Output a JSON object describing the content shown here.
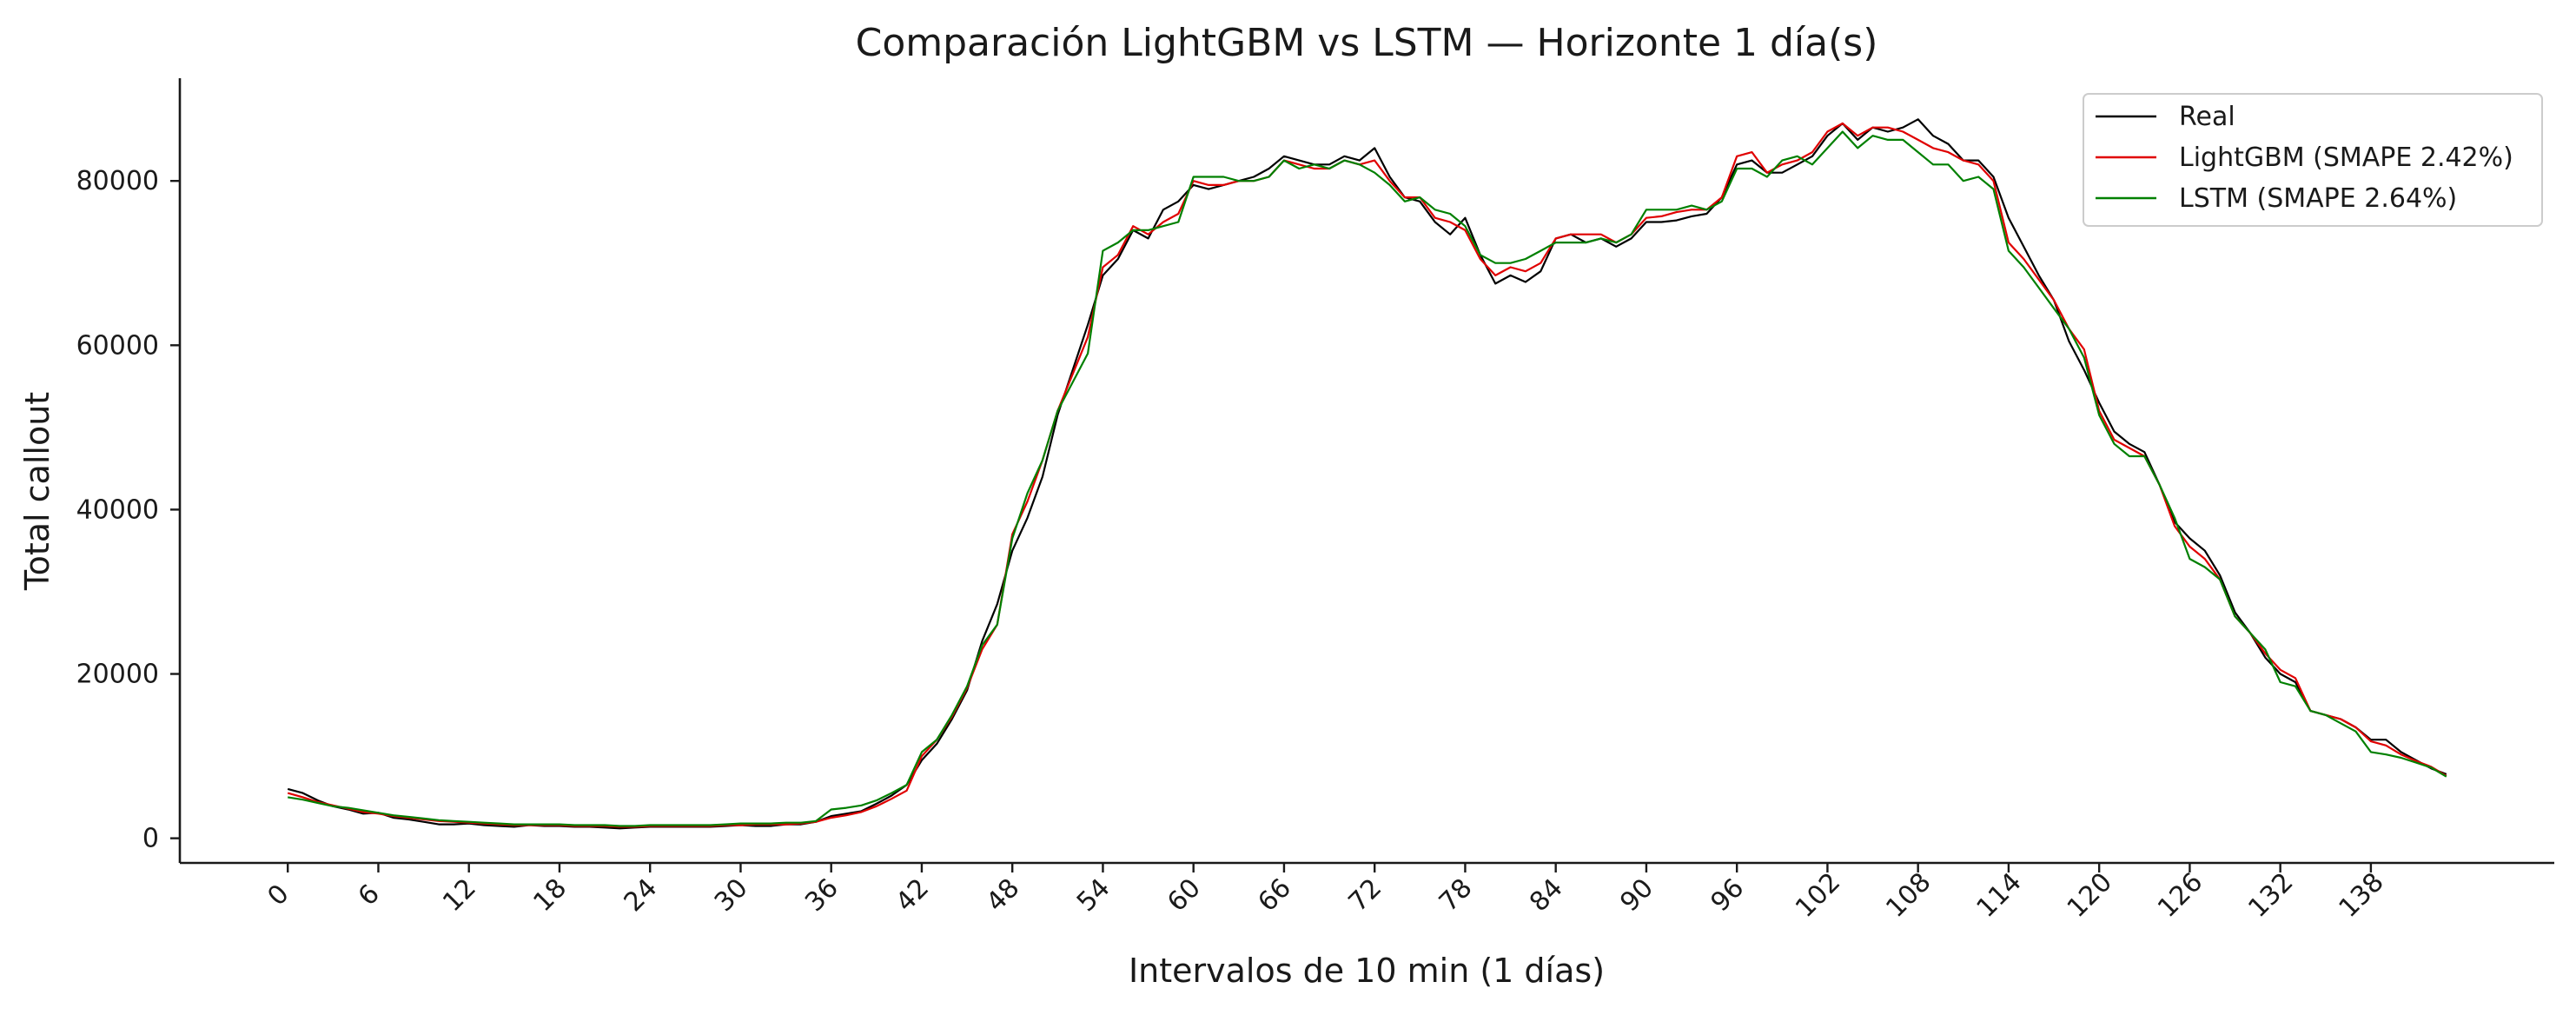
{
  "chart_data": {
    "type": "line",
    "title": "Comparación LightGBM vs LSTM — Horizonte 1 día(s)",
    "xlabel": "Intervalos de 10 min (1 días)",
    "ylabel": "Total callout",
    "xlim": [
      -7.15,
      150.15
    ],
    "ylim": [
      -3000,
      92500
    ],
    "xticks": [
      0,
      6,
      12,
      18,
      24,
      30,
      36,
      42,
      48,
      54,
      60,
      66,
      72,
      78,
      84,
      90,
      96,
      102,
      108,
      114,
      120,
      126,
      132,
      138
    ],
    "yticks": [
      0,
      20000,
      40000,
      60000,
      80000
    ],
    "grid": false,
    "legend_position": "top-right",
    "x": [
      0,
      1,
      2,
      3,
      4,
      5,
      6,
      7,
      8,
      9,
      10,
      11,
      12,
      13,
      14,
      15,
      16,
      17,
      18,
      19,
      20,
      21,
      22,
      23,
      24,
      25,
      26,
      27,
      28,
      29,
      30,
      31,
      32,
      33,
      34,
      35,
      36,
      37,
      38,
      39,
      40,
      41,
      42,
      43,
      44,
      45,
      46,
      47,
      48,
      49,
      50,
      51,
      52,
      53,
      54,
      55,
      56,
      57,
      58,
      59,
      60,
      61,
      62,
      63,
      64,
      65,
      66,
      67,
      68,
      69,
      70,
      71,
      72,
      73,
      74,
      75,
      76,
      77,
      78,
      79,
      80,
      81,
      82,
      83,
      84,
      85,
      86,
      87,
      88,
      89,
      90,
      91,
      92,
      93,
      94,
      95,
      96,
      97,
      98,
      99,
      100,
      101,
      102,
      103,
      104,
      105,
      106,
      107,
      108,
      109,
      110,
      111,
      112,
      113,
      114,
      115,
      116,
      117,
      118,
      119,
      120,
      121,
      122,
      123,
      124,
      125,
      126,
      127,
      128,
      129,
      130,
      131,
      132,
      133,
      134,
      135,
      136,
      137,
      138,
      139,
      140,
      141,
      142,
      143
    ],
    "series": [
      {
        "name": "Real",
        "color": "#000000",
        "values": [
          6000,
          5500,
          4600,
          3900,
          3500,
          3000,
          3100,
          2500,
          2300,
          2000,
          1700,
          1700,
          1800,
          1600,
          1500,
          1400,
          1600,
          1500,
          1500,
          1400,
          1400,
          1300,
          1200,
          1300,
          1400,
          1400,
          1400,
          1400,
          1400,
          1500,
          1600,
          1500,
          1500,
          1700,
          1700,
          2000,
          2700,
          3000,
          3300,
          4200,
          5200,
          6500,
          9500,
          11500,
          14500,
          18000,
          24000,
          28500,
          35000,
          39000,
          44000,
          51500,
          57000,
          62500,
          68500,
          70500,
          74000,
          73000,
          76500,
          77500,
          79500,
          79000,
          79500,
          80000,
          80500,
          81500,
          83000,
          82500,
          82000,
          82000,
          83000,
          82500,
          84000,
          80500,
          78000,
          77500,
          75000,
          73500,
          75500,
          71000,
          67500,
          68500,
          67700,
          69000,
          73000,
          73500,
          72500,
          73000,
          72000,
          73000,
          75000,
          75000,
          75200,
          75700,
          76000,
          78000,
          82000,
          82500,
          81000,
          81000,
          82000,
          83000,
          85500,
          87000,
          85000,
          86500,
          86000,
          86500,
          87500,
          85500,
          84500,
          82500,
          82500,
          80500,
          75500,
          72000,
          68500,
          65500,
          60500,
          57000,
          53000,
          49500,
          48000,
          47000,
          43000,
          38500,
          36500,
          35000,
          32000,
          27500,
          25000,
          22000,
          20000,
          19000,
          15500,
          15000,
          14500,
          13500,
          12000,
          12000,
          10500,
          9500,
          8500,
          7800
        ]
      },
      {
        "name": "LightGBM (SMAPE 2.42%)",
        "color": "#e00000",
        "values": [
          5500,
          5000,
          4400,
          4000,
          3600,
          3200,
          3000,
          2700,
          2500,
          2300,
          2100,
          2000,
          1900,
          1800,
          1700,
          1600,
          1600,
          1600,
          1600,
          1500,
          1500,
          1500,
          1400,
          1400,
          1500,
          1500,
          1500,
          1500,
          1500,
          1600,
          1600,
          1700,
          1700,
          1700,
          1800,
          2000,
          2500,
          2800,
          3200,
          3900,
          4800,
          5800,
          10000,
          12000,
          14800,
          18300,
          23000,
          26000,
          37000,
          41000,
          46000,
          52000,
          56500,
          61000,
          69500,
          71000,
          74500,
          73500,
          75000,
          76000,
          80000,
          79500,
          79500,
          80000,
          80000,
          80500,
          82500,
          82000,
          81500,
          81500,
          82500,
          82000,
          82500,
          80000,
          78000,
          78000,
          75500,
          75000,
          74000,
          70500,
          68500,
          69500,
          69000,
          70000,
          73000,
          73500,
          73500,
          73500,
          72500,
          73500,
          75500,
          75700,
          76200,
          76500,
          76500,
          78000,
          83000,
          83500,
          81000,
          82000,
          82500,
          83500,
          86000,
          87000,
          85500,
          86500,
          86500,
          86000,
          85000,
          84000,
          83500,
          82500,
          82000,
          80000,
          72500,
          70500,
          68000,
          65500,
          62000,
          59500,
          52000,
          48500,
          47500,
          46500,
          43000,
          38000,
          35500,
          34000,
          31500,
          27000,
          25000,
          22500,
          20500,
          19500,
          15500,
          15000,
          14500,
          13500,
          11800,
          11300,
          10200,
          9400,
          8700,
          7600
        ]
      },
      {
        "name": "LSTM (SMAPE 2.64%)",
        "color": "#008000",
        "values": [
          5000,
          4700,
          4300,
          3900,
          3700,
          3400,
          3100,
          2800,
          2600,
          2400,
          2200,
          2100,
          2000,
          1900,
          1800,
          1700,
          1700,
          1700,
          1700,
          1600,
          1600,
          1600,
          1500,
          1500,
          1600,
          1600,
          1600,
          1600,
          1600,
          1700,
          1800,
          1800,
          1800,
          1900,
          1900,
          2100,
          3500,
          3700,
          4000,
          4600,
          5500,
          6500,
          10500,
          12000,
          15000,
          18500,
          23500,
          26000,
          36500,
          42000,
          46000,
          52000,
          55500,
          59000,
          71500,
          72500,
          74000,
          74000,
          74500,
          75000,
          80500,
          80500,
          80500,
          80000,
          80000,
          80500,
          82500,
          81500,
          82000,
          81500,
          82500,
          82000,
          81000,
          79500,
          77500,
          78000,
          76500,
          76000,
          74500,
          71000,
          70000,
          70000,
          70500,
          71500,
          72500,
          72500,
          72500,
          73000,
          72500,
          73500,
          76500,
          76500,
          76500,
          77000,
          76500,
          77500,
          81500,
          81500,
          80500,
          82500,
          83000,
          82000,
          84000,
          86000,
          84000,
          85500,
          85000,
          85000,
          83500,
          82000,
          82000,
          80000,
          80500,
          79000,
          71500,
          69500,
          67000,
          64500,
          62000,
          58500,
          51500,
          48000,
          46500,
          46500,
          43000,
          39000,
          34000,
          33000,
          31500,
          27000,
          25000,
          23000,
          19000,
          18500,
          15500,
          15000,
          14000,
          13000,
          10500,
          10200,
          9800,
          9200,
          8600,
          7500
        ]
      }
    ]
  }
}
